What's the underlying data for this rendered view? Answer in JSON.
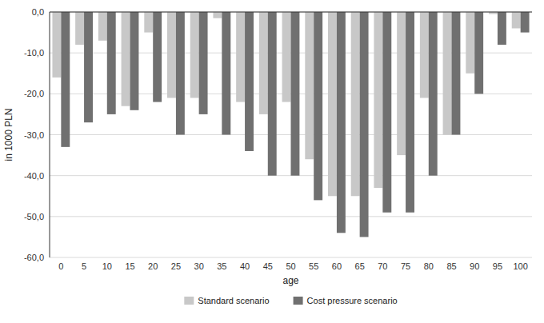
{
  "chart_data": {
    "type": "bar",
    "x_label": "age",
    "y_label": "in 1000 PLN",
    "categories": [
      "0",
      "5",
      "10",
      "15",
      "20",
      "25",
      "30",
      "35",
      "40",
      "45",
      "50",
      "55",
      "60",
      "65",
      "70",
      "75",
      "80",
      "85",
      "90",
      "95",
      "100"
    ],
    "series": [
      {
        "name": "Standard scenario",
        "color": "#c8c8c8",
        "values": [
          -16,
          -8,
          -7,
          -23,
          -5,
          -21,
          -21,
          -1.5,
          -22,
          -25,
          -22,
          -36,
          -45,
          -45,
          -43,
          -35,
          -21,
          -30,
          -15,
          -0.5,
          -4
        ]
      },
      {
        "name": "Cost pressure scenario",
        "color": "#707070",
        "values": [
          -33,
          -27,
          -25,
          -24,
          -22,
          -30,
          -25,
          -30,
          -34,
          -40,
          -40,
          -46,
          -54,
          -55,
          -49,
          -49,
          -40,
          -30,
          -20,
          -8,
          -5
        ]
      }
    ],
    "ylim": [
      -60,
      0
    ],
    "yticks": [
      {
        "value": 0,
        "label": "0,0"
      },
      {
        "value": -10,
        "label": "-10,0"
      },
      {
        "value": -20,
        "label": "-20,0"
      },
      {
        "value": -30,
        "label": "-30,0"
      },
      {
        "value": -40,
        "label": "-40,0"
      },
      {
        "value": -50,
        "label": "-50,0"
      },
      {
        "value": -60,
        "label": "-60,0"
      }
    ],
    "grid": true,
    "legend": "bottom"
  }
}
